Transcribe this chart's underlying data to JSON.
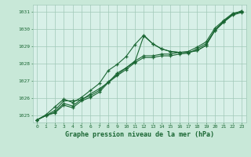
{
  "title": "Graphe pression niveau de la mer (hPa)",
  "background_color": "#c8e8d8",
  "plot_bg_color": "#d8f0e8",
  "grid_color": "#a0c8b8",
  "line_color": "#1a6633",
  "xlim": [
    -0.5,
    23.5
  ],
  "ylim": [
    1024.6,
    1031.4
  ],
  "yticks": [
    1025,
    1026,
    1027,
    1028,
    1029,
    1030,
    1031
  ],
  "xticks": [
    0,
    1,
    2,
    3,
    4,
    5,
    6,
    7,
    8,
    9,
    10,
    11,
    12,
    13,
    14,
    15,
    16,
    17,
    18,
    19,
    20,
    21,
    22,
    23
  ],
  "series": [
    [
      1024.75,
      1025.0,
      1025.3,
      1025.85,
      1025.85,
      1025.9,
      1026.25,
      1026.55,
      1026.9,
      1027.45,
      1027.75,
      1028.1,
      1029.6,
      1029.15,
      1028.85,
      1028.7,
      1028.65,
      1028.65,
      1028.75,
      1029.05,
      1029.95,
      1030.45,
      1030.85,
      1031.0
    ],
    [
      1024.75,
      1025.0,
      1025.2,
      1025.7,
      1025.55,
      1025.95,
      1026.15,
      1026.45,
      1026.95,
      1027.35,
      1027.75,
      1028.15,
      1028.45,
      1028.45,
      1028.55,
      1028.55,
      1028.65,
      1028.7,
      1028.95,
      1029.25,
      1030.05,
      1030.5,
      1030.9,
      1031.0
    ],
    [
      1024.75,
      1025.0,
      1025.15,
      1025.6,
      1025.45,
      1025.85,
      1026.05,
      1026.35,
      1026.9,
      1027.3,
      1027.65,
      1028.05,
      1028.35,
      1028.35,
      1028.45,
      1028.45,
      1028.55,
      1028.6,
      1028.85,
      1029.15,
      1029.9,
      1030.4,
      1030.8,
      1030.95
    ],
    [
      1024.75,
      1025.05,
      1025.5,
      1025.95,
      1025.75,
      1026.05,
      1026.45,
      1026.85,
      1027.6,
      1027.95,
      1028.4,
      1029.1,
      1029.65,
      1029.15,
      1028.85,
      1028.7,
      1028.65,
      1028.65,
      1028.75,
      1029.05,
      1029.9,
      1030.4,
      1030.85,
      1031.05
    ]
  ]
}
